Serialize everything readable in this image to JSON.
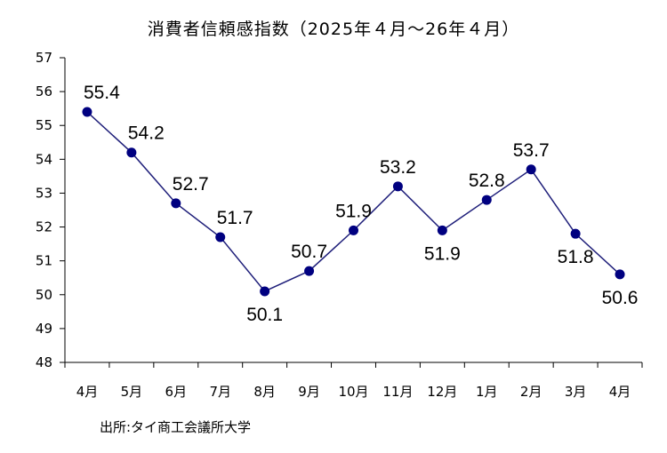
{
  "chart_data": {
    "type": "line",
    "title": "消費者信頼感指数（2025年４月〜26年４月）",
    "categories": [
      "4月",
      "5月",
      "6月",
      "7月",
      "8月",
      "9月",
      "10月",
      "11月",
      "12月",
      "1月",
      "2月",
      "3月",
      "4月"
    ],
    "values": [
      55.4,
      54.2,
      52.7,
      51.7,
      50.1,
      50.7,
      51.9,
      53.2,
      51.9,
      52.8,
      53.7,
      51.8,
      50.6
    ],
    "data_labels": [
      "55.4",
      "54.2",
      "52.7",
      "51.7",
      "50.1",
      "50.7",
      "51.9",
      "53.2",
      "51.9",
      "52.8",
      "53.7",
      "51.8",
      "50.6"
    ],
    "label_positions": [
      "above-right",
      "above-right",
      "above-right",
      "above-right",
      "below",
      "above",
      "above",
      "above",
      "below",
      "above",
      "above",
      "below",
      "below"
    ],
    "yticks": [
      "48",
      "49",
      "50",
      "51",
      "52",
      "53",
      "54",
      "55",
      "56",
      "57"
    ],
    "ylim": [
      48,
      57
    ],
    "grid": false,
    "line_color": "#1f1f7a",
    "marker_color": "#000080",
    "source": "出所:タイ商工会議所大学"
  }
}
